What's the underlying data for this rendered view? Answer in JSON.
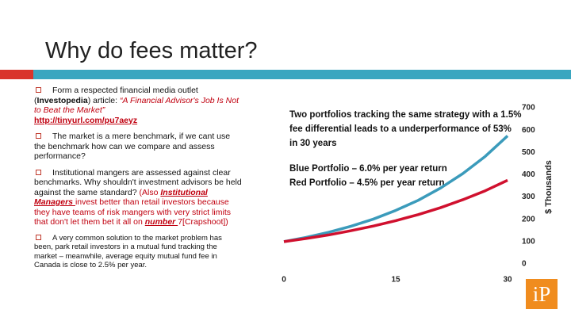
{
  "header": {
    "title": "Why do fees matter?"
  },
  "bullets": [
    [
      "Form a respected financial media outlet (",
      "Investopedia",
      ") article: ",
      "“A Financial Advisor's Job Is Not to Beat the Market”",
      "http://tinyurl.com/pu7aeyz"
    ],
    [
      "The market is a mere benchmark, if we cant use the benchmark how can we compare and assess performance?"
    ],
    [
      "Institutional mangers are assessed against clear benchmarks. Why shouldn't investment advisors be held against the same standard? ",
      "(Also ",
      "Institutional Managers ",
      "invest better than retail investors because they have teams of risk mangers with very strict limits that don't let them bet it all on ",
      "number ",
      "7",
      "[Crapshoot])"
    ],
    [
      "A very common solution to the market problem has been, park retail investors  in a mutual fund tracking the market – meanwhile, average equity mutual fund fee in Canada is close to 2.5% per year."
    ]
  ],
  "logo": "iP",
  "chart_data": {
    "type": "line",
    "annotations": [
      "Two portfolios tracking the same strategy with a 1.5%",
      "fee differential leads to a underperformance of  53%",
      "in 30 years",
      "Blue Portfolio – 6.0% per year return",
      "Red Portfolio – 4.5% per year return"
    ],
    "y_label": "$ Thousands",
    "x": [
      0,
      3,
      6,
      9,
      12,
      15,
      18,
      21,
      24,
      27,
      30
    ],
    "series": [
      {
        "name": "Blue Portfolio",
        "color": "#3b9bbb",
        "values": [
          100,
          119,
          142,
          169,
          201,
          240,
          285,
          340,
          405,
          482,
          574
        ]
      },
      {
        "name": "Red Portfolio",
        "color": "#d0102e",
        "values": [
          100,
          114,
          130,
          149,
          170,
          194,
          221,
          252,
          288,
          328,
          375
        ]
      }
    ],
    "xlim": [
      0,
      30
    ],
    "xticks": [
      0,
      15,
      30
    ],
    "ylim": [
      0,
      700
    ],
    "yticks": [
      0,
      100,
      200,
      300,
      400,
      500,
      600,
      700
    ],
    "grid": false
  }
}
